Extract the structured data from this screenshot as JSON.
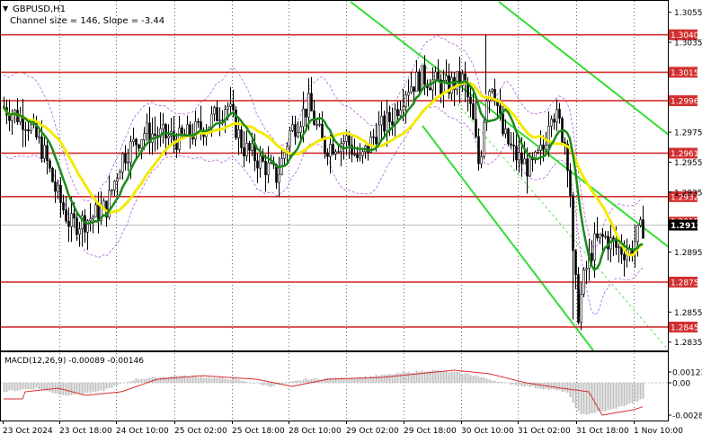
{
  "header": {
    "symbol_timeframe": "GBPUSD,H1",
    "channel_info": "Channel size = 146, Slope = -3.44"
  },
  "macd": {
    "label": "MACD(12,26,9) -0.00089 -0.00146",
    "ticks": [
      "0.00123",
      "0.00",
      "-0.00287"
    ]
  },
  "price_axis": {
    "ticks": [
      "1.3055",
      "1.3035",
      "1.2975",
      "1.2955",
      "1.2935",
      "1.2895",
      "1.2855",
      "1.2835"
    ],
    "current_price": "1.2913",
    "partly_hidden_label": "1.2915"
  },
  "levels": [
    {
      "value": 1.304,
      "label": "1.3040"
    },
    {
      "value": 1.3015,
      "label": "1.3015"
    },
    {
      "value": 1.2996,
      "label": "1.2996"
    },
    {
      "value": 1.2961,
      "label": "1.2961"
    },
    {
      "value": 1.2932,
      "label": "1.2932"
    },
    {
      "value": 1.2875,
      "label": "1.2875"
    },
    {
      "value": 1.2845,
      "label": "1.2845"
    }
  ],
  "time_axis": [
    "23 Oct 2024",
    "23 Oct 18:00",
    "24 Oct 10:00",
    "25 Oct 02:00",
    "25 Oct 18:00",
    "28 Oct 10:00",
    "29 Oct 02:00",
    "29 Oct 18:00",
    "30 Oct 10:00",
    "31 Oct 02:00",
    "31 Oct 18:00",
    "1 Nov 10:00"
  ],
  "colors": {
    "level_line": "#d32f2f",
    "candle": "#000000",
    "ma_fast": "#1b8a1b",
    "ma_slow": "#f2ea00",
    "channel": "#33dd33",
    "bands": "#b060d8",
    "macd_hist": "#c0c0c0",
    "macd_signal": "#d32f2f",
    "current_price_bg": "#000000"
  },
  "chart_data": {
    "type": "candlestick",
    "symbol": "GBPUSD",
    "timeframe": "H1",
    "ylim": [
      1.283,
      1.3062
    ],
    "close_path": [
      [
        "23 Oct 2024",
        1.2992
      ],
      [
        "23 Oct 18:00",
        1.2908
      ],
      [
        "24 Oct 10:00",
        1.2958
      ],
      [
        "25 Oct 02:00",
        1.2968
      ],
      [
        "25 Oct 18:00",
        1.2952
      ],
      [
        "28 Oct 10:00",
        1.2975
      ],
      [
        "29 Oct 02:00",
        1.299
      ],
      [
        "29 Oct 18:00",
        1.301
      ],
      [
        "30 Oct 10:00",
        1.2982
      ],
      [
        "31 Oct 02:00",
        1.296
      ],
      [
        "31 Oct 18:00",
        1.2897
      ],
      [
        "1 Nov 10:00",
        1.2913
      ]
    ],
    "series": [
      {
        "name": "MA fast",
        "color": "#1b8a1b"
      },
      {
        "name": "MA slow",
        "color": "#f2ea00"
      }
    ],
    "horizontal_levels": [
      1.304,
      1.3015,
      1.2996,
      1.2961,
      1.2932,
      1.2875,
      1.2845
    ],
    "current_price": 1.2913
  }
}
